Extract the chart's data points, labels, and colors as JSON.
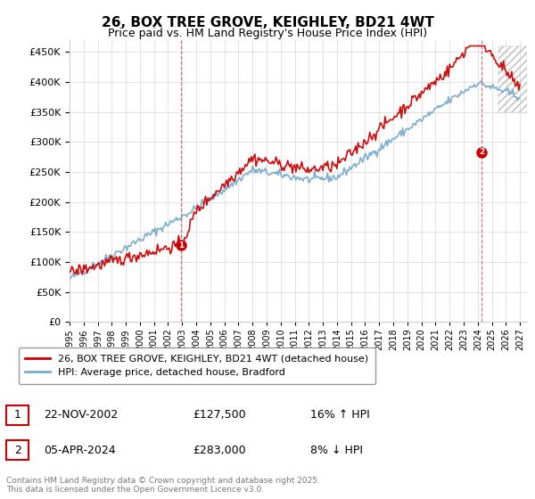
{
  "title": "26, BOX TREE GROVE, KEIGHLEY, BD21 4WT",
  "subtitle": "Price paid vs. HM Land Registry's House Price Index (HPI)",
  "xlim_start": 1995.0,
  "xlim_end": 2027.5,
  "ylim_min": 0,
  "ylim_max": 470000,
  "yticks": [
    0,
    50000,
    100000,
    150000,
    200000,
    250000,
    300000,
    350000,
    400000,
    450000
  ],
  "red_color": "#cc0000",
  "blue_color": "#77aacc",
  "sale1_date": 2002.9,
  "sale1_price": 127500,
  "sale2_date": 2024.27,
  "sale2_price": 283000,
  "legend_red": "26, BOX TREE GROVE, KEIGHLEY, BD21 4WT (detached house)",
  "legend_blue": "HPI: Average price, detached house, Bradford",
  "ann1_num": "1",
  "ann1_date": "22-NOV-2002",
  "ann1_price": "£127,500",
  "ann1_hpi": "16% ↑ HPI",
  "ann2_num": "2",
  "ann2_date": "05-APR-2024",
  "ann2_price": "£283,000",
  "ann2_hpi": "8% ↓ HPI",
  "footer": "Contains HM Land Registry data © Crown copyright and database right 2025.\nThis data is licensed under the Open Government Licence v3.0.",
  "background_color": "#ffffff",
  "grid_color": "#cccccc"
}
